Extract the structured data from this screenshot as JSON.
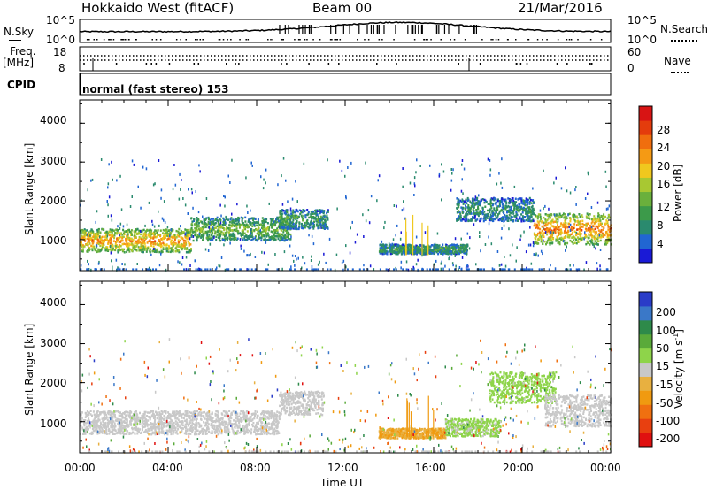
{
  "header": {
    "radar": "Hokkaido West (fitACF)",
    "beam": "Beam 00",
    "date": "21/Mar/2016"
  },
  "noise_panel": {
    "left_label": "N.Sky",
    "left_ticks": [
      "10^5",
      "10^0"
    ],
    "right_ticks": [
      "10^5",
      "10^0"
    ],
    "right_label": "N.Search"
  },
  "freq_panel": {
    "left_label_line1": "Freq.",
    "left_label_line2": "[MHz]",
    "left_ticks": [
      "18",
      "8"
    ],
    "right_ticks": [
      "60",
      "0"
    ],
    "right_label": "Nave"
  },
  "cpid_panel": {
    "label": "CPID",
    "text": "normal (fast stereo) 153"
  },
  "chart_data": [
    {
      "type": "heatmap",
      "panel": "power",
      "ylabel": "Slant Range [km]",
      "xlabel": "",
      "y_ticks": [
        "4000",
        "3000",
        "2000",
        "1000"
      ],
      "ylim": [
        200,
        4600
      ],
      "colorbar": {
        "label": "Power [dB]",
        "ticks": [
          "28",
          "24",
          "20",
          "16",
          "12",
          "8",
          "4"
        ],
        "colors": [
          "#1a1ad6",
          "#2166d2",
          "#2a8a6e",
          "#3c9a4a",
          "#6ab03c",
          "#a8c832",
          "#f0c81e",
          "#f59a14",
          "#f06e0e",
          "#e43c0c",
          "#d81414"
        ]
      },
      "bands": [
        {
          "t_start": 0.0,
          "t_end": 5.0,
          "r_low": 700,
          "r_high": 1300,
          "intensity": 0.75
        },
        {
          "t_start": 5.0,
          "t_end": 9.5,
          "r_low": 1000,
          "r_high": 1600,
          "intensity": 0.45
        },
        {
          "t_start": 9.0,
          "t_end": 11.2,
          "r_low": 1300,
          "r_high": 1800,
          "intensity": 0.3
        },
        {
          "t_start": 13.5,
          "t_end": 17.5,
          "r_low": 650,
          "r_high": 900,
          "intensity": 0.3
        },
        {
          "t_start": 17.0,
          "t_end": 20.5,
          "r_low": 1500,
          "r_high": 2100,
          "intensity": 0.25
        },
        {
          "t_start": 20.5,
          "t_end": 24.0,
          "r_low": 900,
          "r_high": 1700,
          "intensity": 0.8
        }
      ]
    },
    {
      "type": "heatmap",
      "panel": "velocity",
      "ylabel": "Slant Range [km]",
      "xlabel": "Time UT",
      "x_ticks": [
        "00:00",
        "04:00",
        "08:00",
        "12:00",
        "16:00",
        "20:00",
        "00:00"
      ],
      "y_ticks": [
        "4000",
        "3000",
        "2000",
        "1000"
      ],
      "ylim": [
        200,
        4600
      ],
      "colorbar": {
        "label": "Velocity [m s^-1]",
        "ticks": [
          "200",
          "100",
          "50",
          "15",
          "-15",
          "-50",
          "-100",
          "-200"
        ],
        "colors": [
          "#2a3cc8",
          "#3a78c8",
          "#2e8a4a",
          "#5aaa3a",
          "#8ed44a",
          "#c8c8c8",
          "#e8b040",
          "#f09a10",
          "#f07010",
          "#e84010",
          "#e01010"
        ]
      },
      "bands": [
        {
          "t_start": 0.0,
          "t_end": 9.0,
          "r_low": 700,
          "r_high": 1300,
          "v": 0
        },
        {
          "t_start": 9.0,
          "t_end": 11.0,
          "r_low": 1200,
          "r_high": 1800,
          "v": 0
        },
        {
          "t_start": 13.5,
          "t_end": 16.5,
          "r_low": 600,
          "r_high": 850,
          "v": -60
        },
        {
          "t_start": 16.5,
          "t_end": 19.0,
          "r_low": 650,
          "r_high": 1100,
          "v": 30
        },
        {
          "t_start": 18.5,
          "t_end": 21.5,
          "r_low": 1500,
          "r_high": 2300,
          "v": 40
        },
        {
          "t_start": 21.0,
          "t_end": 24.0,
          "r_low": 900,
          "r_high": 1700,
          "v": 0
        }
      ]
    }
  ]
}
